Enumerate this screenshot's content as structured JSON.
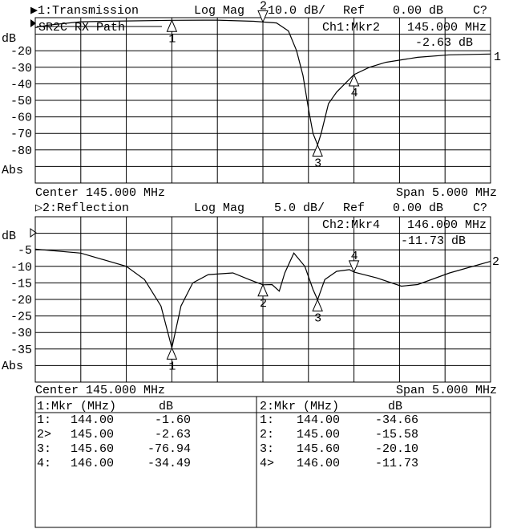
{
  "colors": {
    "background": "#ffffff",
    "foreground": "#000000"
  },
  "channel1": {
    "header": "▶1:Transmission",
    "format": "Log Mag",
    "scale": "10.0 dB/",
    "ref_label": "Ref",
    "ref_value": "0.00 dB",
    "cal_status": "C?",
    "title": "SR2C RX Path",
    "active_marker_label": "Ch1:Mkr2",
    "active_marker_freq": "145.000 MHz",
    "active_marker_value": "-2.63 dB",
    "unit_label": "dB",
    "abs_label": "Abs",
    "y_tick_labels": [
      "-20",
      "-30",
      "-40",
      "-50",
      "-60",
      "-70",
      "-80"
    ],
    "center": "Center 145.000 MHz",
    "span": "Span 5.000 MHz",
    "trace_label": "1"
  },
  "channel2": {
    "header": "▷2:Reflection",
    "format": "Log Mag",
    "scale": "5.0 dB/",
    "ref_label": "Ref",
    "ref_value": "0.00 dB",
    "cal_status": "C?",
    "active_marker_label": "Ch2:Mkr4",
    "active_marker_freq": "146.000 MHz",
    "active_marker_value": "-11.73 dB",
    "unit_label": "dB",
    "abs_label": "Abs",
    "y_tick_labels": [
      "-5",
      "-10",
      "-15",
      "-20",
      "-25",
      "-30",
      "-35"
    ],
    "center": "Center 145.000 MHz",
    "span": "Span 5.000 MHz",
    "trace_label": "2"
  },
  "chart_data": [
    {
      "type": "line",
      "title": "1:Transmission",
      "xlim": [
        142.5,
        147.5
      ],
      "ylim": [
        -100,
        0
      ],
      "grid": true,
      "x_divisions": 10,
      "y_divisions": 10,
      "series": [
        {
          "name": "1",
          "x": [
            142.5,
            142.64,
            143.0,
            143.5,
            144.0,
            144.5,
            144.9,
            145.0,
            145.15,
            145.28,
            145.37,
            145.44,
            145.5,
            145.55,
            145.6,
            145.64,
            145.72,
            145.81,
            146.0,
            146.17,
            146.35,
            146.7,
            147.05,
            147.5
          ],
          "y": [
            -6,
            -4.5,
            -2.5,
            -2,
            -1.6,
            -1.5,
            -2.2,
            -2.63,
            -3.2,
            -8,
            -20,
            -35,
            -55,
            -70,
            -76.94,
            -70,
            -52,
            -45,
            -34.49,
            -30,
            -27,
            -24,
            -22.5,
            -22
          ]
        }
      ],
      "markers": [
        {
          "id": "1",
          "freq": 144.0,
          "value": -1.6,
          "active": false
        },
        {
          "id": "2",
          "freq": 145.0,
          "value": -2.63,
          "active": true
        },
        {
          "id": "3",
          "freq": 145.6,
          "value": -76.94,
          "active": false
        },
        {
          "id": "4",
          "freq": 146.0,
          "value": -34.49,
          "active": false
        }
      ]
    },
    {
      "type": "line",
      "title": "2:Reflection",
      "xlim": [
        142.5,
        147.5
      ],
      "ylim": [
        -45,
        5
      ],
      "grid": true,
      "x_divisions": 10,
      "y_divisions": 10,
      "series": [
        {
          "name": "2",
          "x": [
            142.5,
            143.0,
            143.5,
            143.7,
            143.88,
            144.0,
            144.1,
            144.23,
            144.4,
            144.67,
            144.85,
            145.0,
            145.1,
            145.18,
            145.24,
            145.34,
            145.46,
            145.55,
            145.6,
            145.68,
            145.81,
            145.95,
            146.0,
            146.25,
            146.52,
            146.7,
            147.05,
            147.5
          ],
          "y": [
            -4.8,
            -6,
            -10,
            -14,
            -22,
            -34.66,
            -22,
            -15,
            -12.5,
            -12,
            -14,
            -15.58,
            -15.5,
            -17.5,
            -12,
            -6,
            -10,
            -17,
            -20.1,
            -14,
            -11.5,
            -11,
            -11.73,
            -13.5,
            -16,
            -15.5,
            -12,
            -8.5
          ]
        }
      ],
      "markers": [
        {
          "id": "1",
          "freq": 144.0,
          "value": -34.66,
          "active": false
        },
        {
          "id": "2",
          "freq": 145.0,
          "value": -15.58,
          "active": false
        },
        {
          "id": "3",
          "freq": 145.6,
          "value": -20.1,
          "active": false
        },
        {
          "id": "4",
          "freq": 146.0,
          "value": -11.73,
          "active": true
        }
      ]
    }
  ],
  "marker_table": [
    {
      "header_mkr": "1:Mkr (MHz)",
      "header_db": "dB",
      "rows": [
        {
          "id": "1:",
          "freq": "144.00",
          "value": "-1.60"
        },
        {
          "id": "2>",
          "freq": "145.00",
          "value": "-2.63"
        },
        {
          "id": "3:",
          "freq": "145.60",
          "value": "-76.94"
        },
        {
          "id": "4:",
          "freq": "146.00",
          "value": "-34.49"
        }
      ]
    },
    {
      "header_mkr": "2:Mkr (MHz)",
      "header_db": "dB",
      "rows": [
        {
          "id": "1:",
          "freq": "144.00",
          "value": "-34.66"
        },
        {
          "id": "2:",
          "freq": "145.00",
          "value": "-15.58"
        },
        {
          "id": "3:",
          "freq": "145.60",
          "value": "-20.10"
        },
        {
          "id": "4>",
          "freq": "146.00",
          "value": "-11.73"
        }
      ]
    }
  ]
}
